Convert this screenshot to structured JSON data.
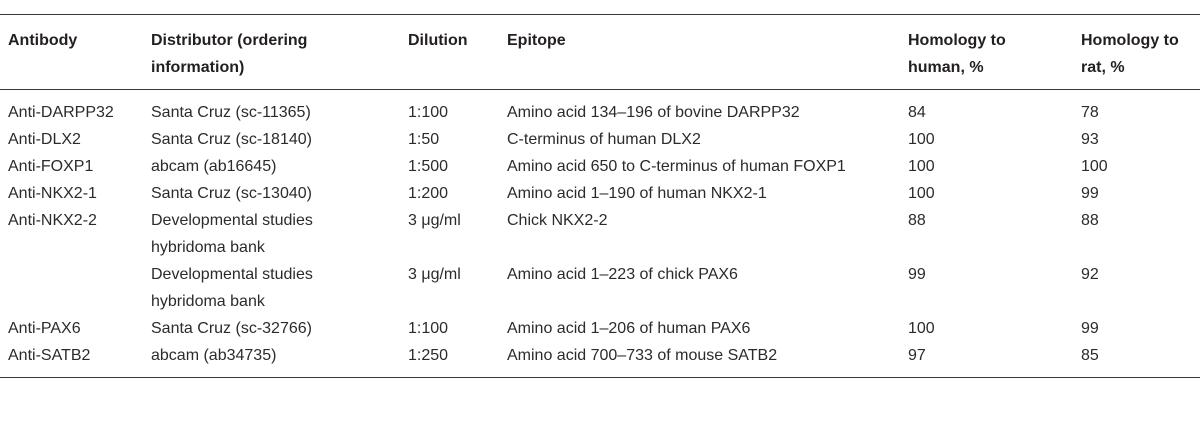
{
  "table": {
    "headers": {
      "antibody": "Antibody",
      "distributor_line1": "Distributor (ordering",
      "distributor_line2": "information)",
      "dilution": "Dilution",
      "epitope": "Epitope",
      "human_line1": "Homology to",
      "human_line2": "human, %",
      "rat_line1": "Homology to",
      "rat_line2": "rat, %"
    },
    "rows": [
      {
        "antibody": "Anti-DARPP32",
        "distributor": "Santa Cruz (sc-11365)",
        "distributor2": "",
        "dilution": "1:100",
        "epitope": "Amino acid 134–196 of bovine DARPP32",
        "human": "84",
        "rat": "78"
      },
      {
        "antibody": "Anti-DLX2",
        "distributor": "Santa Cruz (sc-18140)",
        "distributor2": "",
        "dilution": "1:50",
        "epitope": "C-terminus of human DLX2",
        "human": "100",
        "rat": "93"
      },
      {
        "antibody": "Anti-FOXP1",
        "distributor": "abcam (ab16645)",
        "distributor2": "",
        "dilution": "1:500",
        "epitope": "Amino acid 650 to C-terminus of human FOXP1",
        "human": "100",
        "rat": "100"
      },
      {
        "antibody": "Anti-NKX2-1",
        "distributor": "Santa Cruz (sc-13040)",
        "distributor2": "",
        "dilution": "1:200",
        "epitope": "Amino acid 1–190 of human NKX2-1",
        "human": "100",
        "rat": "99"
      },
      {
        "antibody": "Anti-NKX2-2",
        "distributor": "Developmental studies",
        "distributor2": "hybridoma bank",
        "dilution": "3 μg/ml",
        "epitope": "Chick NKX2-2",
        "human": "88",
        "rat": "88"
      },
      {
        "antibody": "",
        "distributor": "Developmental studies",
        "distributor2": "hybridoma bank",
        "dilution": "3 μg/ml",
        "epitope": "Amino acid 1–223 of chick PAX6",
        "human": "99",
        "rat": "92"
      },
      {
        "antibody": "Anti-PAX6",
        "distributor": "Santa Cruz (sc-32766)",
        "distributor2": "",
        "dilution": "1:100",
        "epitope": "Amino acid 1–206 of human PAX6",
        "human": "100",
        "rat": "99"
      },
      {
        "antibody": "Anti-SATB2",
        "distributor": "abcam (ab34735)",
        "distributor2": "",
        "dilution": "1:250",
        "epitope": "Amino acid 700–733 of mouse SATB2",
        "human": "97",
        "rat": "85"
      }
    ]
  }
}
